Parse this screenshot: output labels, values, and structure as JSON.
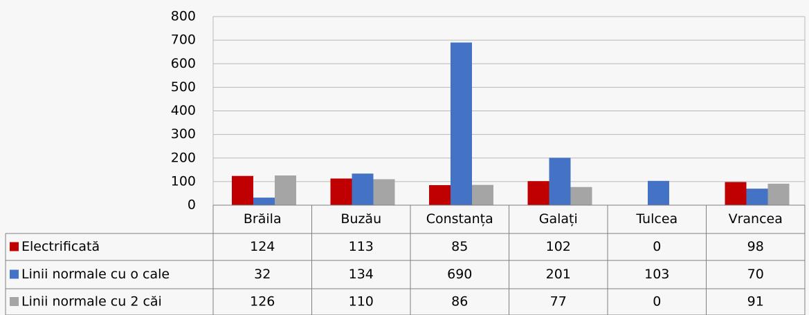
{
  "chart_data": {
    "type": "bar",
    "categories": [
      "Brăila",
      "Buzău",
      "Constanța",
      "Galați",
      "Tulcea",
      "Vrancea"
    ],
    "series": [
      {
        "name": "Electrificată",
        "color": "#c00000",
        "values": [
          124,
          113,
          85,
          102,
          0,
          98
        ]
      },
      {
        "name": "Linii normale cu o cale",
        "color": "#4472c4",
        "values": [
          32,
          134,
          690,
          201,
          103,
          70
        ]
      },
      {
        "name": "Linii normale cu 2 căi",
        "color": "#a5a5a5",
        "values": [
          126,
          110,
          86,
          77,
          0,
          91
        ]
      }
    ],
    "ylim": [
      0,
      800
    ],
    "yticks": [
      0,
      100,
      200,
      300,
      400,
      500,
      600,
      700,
      800
    ],
    "grid": true
  }
}
